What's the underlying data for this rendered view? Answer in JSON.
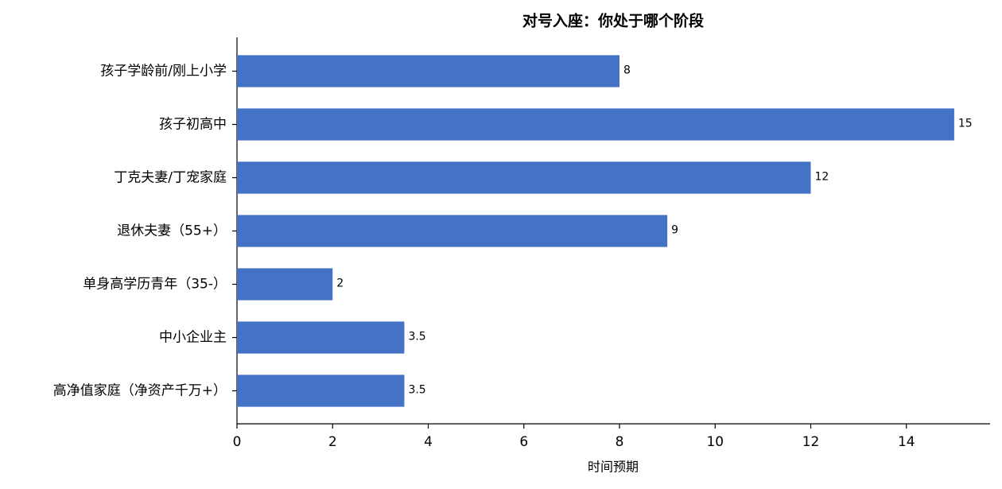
{
  "chart_data": {
    "type": "barh",
    "title": "对号入座：你处于哪个阶段",
    "x_label": "时间预期",
    "categories": [
      "孩子学龄前/刚上小学",
      "孩子初高中",
      "丁克夫妻/丁宠家庭",
      "退休夫妻（55+）",
      "单身高学历青年（35-）",
      "中小企业主",
      "高净值家庭（净资产千万+）"
    ],
    "values": [
      8,
      15,
      12,
      9,
      2,
      3.5,
      3.5
    ],
    "color": "#4472c4",
    "xlim": [
      0,
      15.75
    ],
    "xticks": [
      0,
      2,
      4,
      6,
      8,
      10,
      12,
      14
    ],
    "grid": false
  }
}
